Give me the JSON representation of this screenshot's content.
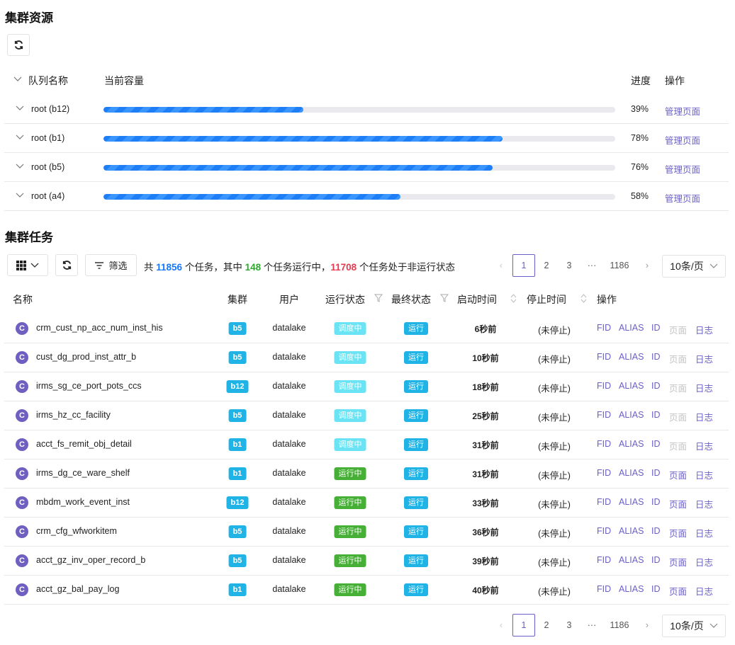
{
  "resources": {
    "title": "集群资源",
    "headers": {
      "name": "队列名称",
      "capacity": "当前容量",
      "progress": "进度",
      "action": "操作"
    },
    "queues": [
      {
        "name": "root (b12)",
        "progress": 39,
        "progress_label": "39%",
        "link": "管理页面"
      },
      {
        "name": "root (b1)",
        "progress": 78,
        "progress_label": "78%",
        "link": "管理页面"
      },
      {
        "name": "root (b5)",
        "progress": 76,
        "progress_label": "76%",
        "link": "管理页面"
      },
      {
        "name": "root (a4)",
        "progress": 58,
        "progress_label": "58%",
        "link": "管理页面"
      }
    ]
  },
  "tasks": {
    "title": "集群任务",
    "filter_label": "筛选",
    "summary": {
      "p1": "共",
      "total": "11856",
      "p2": "个任务，其中",
      "running": "148",
      "p3": "个任务运行中，",
      "stopped": "11708",
      "p4": "个任务处于非运行状态"
    },
    "colors": {
      "total": "#1677ff",
      "running": "#2ea82e",
      "stopped": "#e8384f",
      "link": "#6a5fc9"
    },
    "pagination": {
      "pages": [
        "1",
        "2",
        "3",
        "···",
        "1186"
      ],
      "current": "1",
      "page_size": "10条/页"
    },
    "headers": {
      "name": "名称",
      "cluster": "集群",
      "user": "用户",
      "run_state": "运行状态",
      "final_state": "最终状态",
      "start": "启动时间",
      "stop": "停止时间",
      "action": "操作"
    },
    "action_labels": [
      "FID",
      "ALIAS",
      "ID",
      "页面",
      "日志"
    ],
    "rows": [
      {
        "icon": "C",
        "name": "crm_cust_np_acc_num_inst_his",
        "cluster": "b5",
        "user": "datalake",
        "run_state": "调度中",
        "final_state": "运行",
        "start": "6秒前",
        "stop": "(未停止)",
        "page_enabled": false
      },
      {
        "icon": "C",
        "name": "cust_dg_prod_inst_attr_b",
        "cluster": "b5",
        "user": "datalake",
        "run_state": "调度中",
        "final_state": "运行",
        "start": "10秒前",
        "stop": "(未停止)",
        "page_enabled": false
      },
      {
        "icon": "C",
        "name": "irms_sg_ce_port_pots_ccs",
        "cluster": "b12",
        "user": "datalake",
        "run_state": "调度中",
        "final_state": "运行",
        "start": "18秒前",
        "stop": "(未停止)",
        "page_enabled": false
      },
      {
        "icon": "C",
        "name": "irms_hz_cc_facility",
        "cluster": "b5",
        "user": "datalake",
        "run_state": "调度中",
        "final_state": "运行",
        "start": "25秒前",
        "stop": "(未停止)",
        "page_enabled": false
      },
      {
        "icon": "C",
        "name": "acct_fs_remit_obj_detail",
        "cluster": "b1",
        "user": "datalake",
        "run_state": "调度中",
        "final_state": "运行",
        "start": "31秒前",
        "stop": "(未停止)",
        "page_enabled": false
      },
      {
        "icon": "C",
        "name": "irms_dg_ce_ware_shelf",
        "cluster": "b1",
        "user": "datalake",
        "run_state": "运行中",
        "final_state": "运行",
        "start": "31秒前",
        "stop": "(未停止)",
        "page_enabled": true
      },
      {
        "icon": "C",
        "name": "mbdm_work_event_inst",
        "cluster": "b12",
        "user": "datalake",
        "run_state": "运行中",
        "final_state": "运行",
        "start": "33秒前",
        "stop": "(未停止)",
        "page_enabled": true
      },
      {
        "icon": "C",
        "name": "crm_cfg_wfworkitem",
        "cluster": "b5",
        "user": "datalake",
        "run_state": "运行中",
        "final_state": "运行",
        "start": "36秒前",
        "stop": "(未停止)",
        "page_enabled": true
      },
      {
        "icon": "C",
        "name": "acct_gz_inv_oper_record_b",
        "cluster": "b5",
        "user": "datalake",
        "run_state": "运行中",
        "final_state": "运行",
        "start": "39秒前",
        "stop": "(未停止)",
        "page_enabled": true
      },
      {
        "icon": "C",
        "name": "acct_gz_bal_pay_log",
        "cluster": "b1",
        "user": "datalake",
        "run_state": "运行中",
        "final_state": "运行",
        "start": "40秒前",
        "stop": "(未停止)",
        "page_enabled": true
      }
    ]
  }
}
